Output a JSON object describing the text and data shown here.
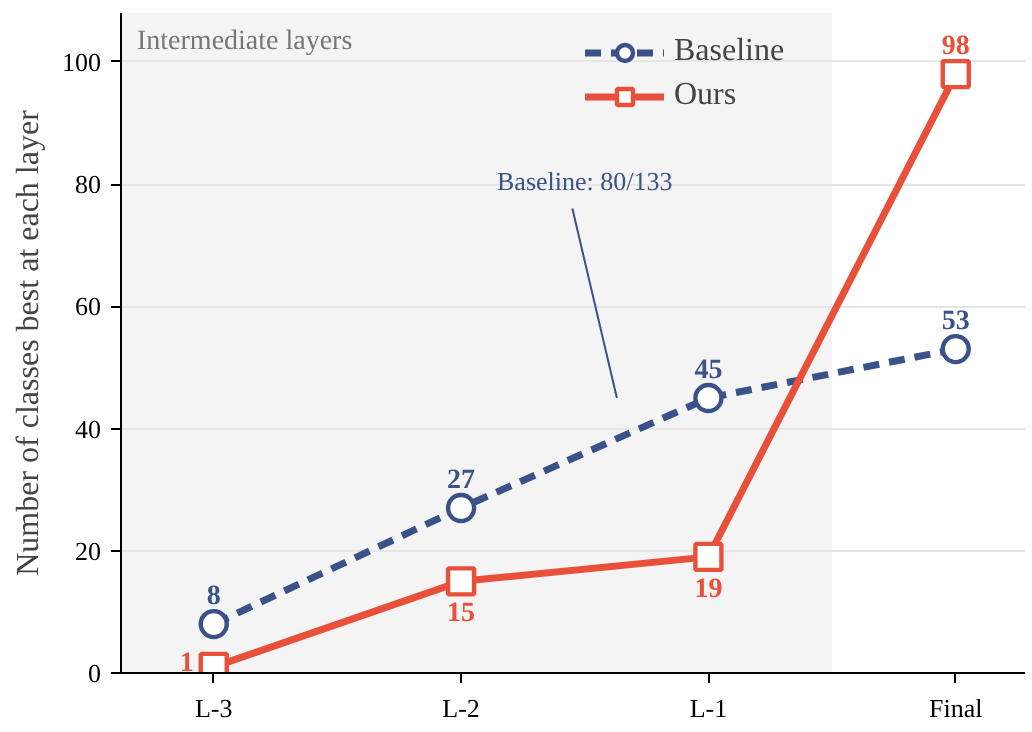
{
  "chart_data": {
    "type": "line",
    "ylabel": "Number of classes best at each layer",
    "categories": [
      "L-3",
      "L-2",
      "L-1",
      "Final"
    ],
    "series": [
      {
        "name": "Baseline",
        "color": "#3a5189",
        "values": [
          8,
          27,
          45,
          53
        ],
        "marker": "circle",
        "line_style": "dashed"
      },
      {
        "name": "Ours",
        "color": "#e8503a",
        "values": [
          1,
          15,
          19,
          98
        ],
        "marker": "square",
        "line_style": "solid"
      }
    ],
    "ylim": [
      0,
      108
    ],
    "yticks": [
      0,
      20,
      40,
      60,
      80,
      100
    ],
    "grid": "y",
    "legend": "top right",
    "data_labels": true,
    "annotations": [
      "Intermediate layers",
      "Baseline: 80/133"
    ]
  }
}
